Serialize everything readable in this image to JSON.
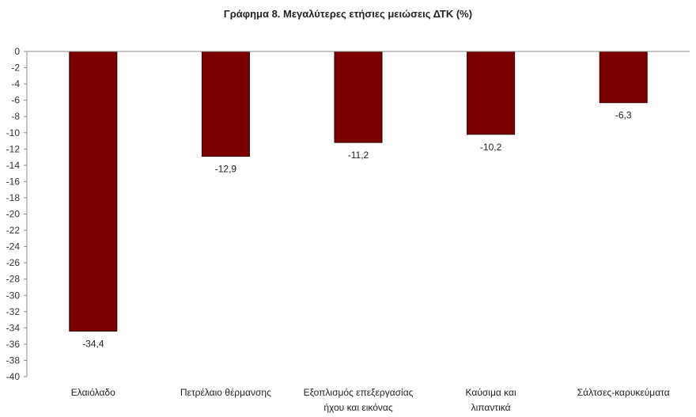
{
  "chart_data": {
    "type": "bar",
    "title": "Γράφημα 8. Μεγαλύτερες ετήσιες μειώσεις ΔΤΚ (%)",
    "xlabel": "",
    "ylabel": "",
    "categories": [
      [
        "Ελαιόλαδο"
      ],
      [
        "Πετρέλαιο θέρμανσης"
      ],
      [
        "Εξοπλισμός επεξεργασίας",
        "ήχου και εικόνας"
      ],
      [
        "Καύσιμα και",
        "λιπαντικά"
      ],
      [
        "Σάλτσες-καρυκεύματα"
      ]
    ],
    "values": [
      -34.4,
      -12.9,
      -11.2,
      -10.2,
      -6.3
    ],
    "data_labels": [
      "-34,4",
      "-12,9",
      "-11,2",
      "-10,2",
      "-6,3"
    ],
    "ylim": [
      -40,
      0
    ],
    "yticks": [
      0,
      -2,
      -4,
      -6,
      -8,
      -10,
      -12,
      -14,
      -16,
      -18,
      -20,
      -22,
      -24,
      -26,
      -28,
      -30,
      -32,
      -34,
      -36,
      -38,
      -40
    ],
    "bar_color": "#7b0000",
    "grid": false,
    "legend": "none"
  }
}
